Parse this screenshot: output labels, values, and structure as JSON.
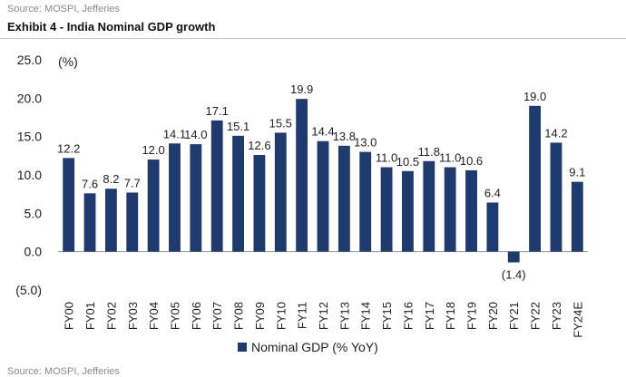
{
  "header": {
    "source": "Source: MOSPI, Jefferies",
    "title": "Exhibit 4 - India Nominal GDP growth"
  },
  "footer": {
    "source": "Source: MOSPI, Jefferies"
  },
  "chart_data": {
    "type": "bar",
    "ylabel": "(%)",
    "ylim": [
      -5,
      25
    ],
    "yticks": [
      "25.0",
      "20.0",
      "15.0",
      "10.0",
      "5.0",
      "0.0",
      "(5.0)"
    ],
    "ytick_values": [
      25,
      20,
      15,
      10,
      5,
      0,
      -5
    ],
    "grid": false,
    "legend_position": "bottom",
    "bar_color": "#1f3a6e",
    "categories": [
      "FY00",
      "FY01",
      "FY02",
      "FY03",
      "FY04",
      "FY05",
      "FY06",
      "FY07",
      "FY08",
      "FY09",
      "FY10",
      "FY11",
      "FY12",
      "FY13",
      "FY14",
      "FY15",
      "FY16",
      "FY17",
      "FY18",
      "FY19",
      "FY20",
      "FY21",
      "FY22",
      "FY23",
      "FY24E"
    ],
    "series": [
      {
        "name": "Nominal GDP (% YoY)",
        "values": [
          12.2,
          7.6,
          8.2,
          7.7,
          12.0,
          14.1,
          14.0,
          17.1,
          15.1,
          12.6,
          15.5,
          19.9,
          14.4,
          13.8,
          13.0,
          11.0,
          10.5,
          11.8,
          11.0,
          10.6,
          6.4,
          -1.4,
          19.0,
          14.2,
          9.1
        ],
        "labels": [
          "12.2",
          "7.6",
          "8.2",
          "7.7",
          "12.0",
          "14.1",
          "14.0",
          "17.1",
          "15.1",
          "12.6",
          "15.5",
          "19.9",
          "14.4",
          "13.8",
          "13.0",
          "11.0",
          "10.5",
          "11.8",
          "11.0",
          "10.6",
          "6.4",
          "(1.4)",
          "19.0",
          "14.2",
          "9.1"
        ]
      }
    ]
  }
}
